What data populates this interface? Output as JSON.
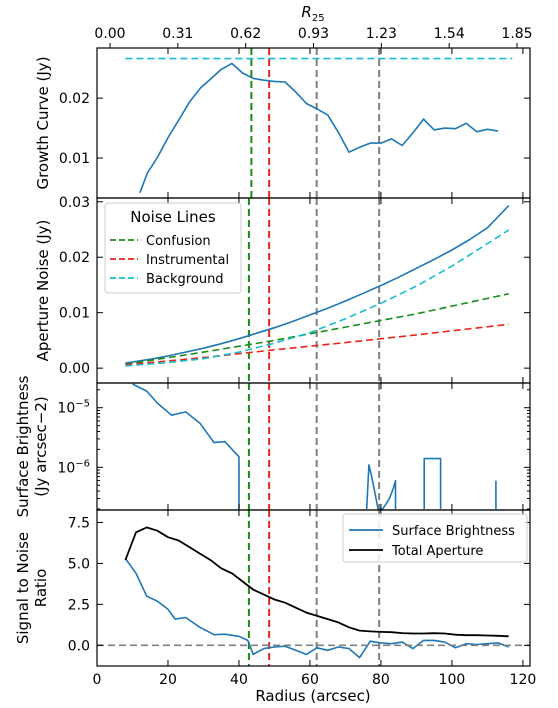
{
  "figure": {
    "top_axis_label": "R25",
    "x_axis_label": "Radius (arcsec)"
  },
  "colors": {
    "blue": "#1f77b4",
    "green": "#1a8c1a",
    "red": "#e8251c",
    "cyan": "#17becf",
    "gray": "#808080",
    "black": "#000000"
  },
  "chart_data": [
    {
      "type": "line",
      "ylabel": "Growth Curve (Jy)",
      "ylim": [
        0.0035,
        0.0282
      ],
      "yticks": [
        "0.01",
        "0.02"
      ],
      "yticks_values": [
        0.01,
        0.02
      ],
      "top_ticks": [
        "0.00",
        "0.31",
        "0.62",
        "0.93",
        "1.23",
        "1.54",
        "1.85"
      ],
      "top_ticks_radius": [
        8.2,
        23.2,
        38.2,
        53.2,
        68.2,
        83.2,
        98.2
      ],
      "series": [
        {
          "color": "blue",
          "x": [
            12.1,
            14.2,
            17.1,
            20.1,
            23.0,
            26.0,
            29.2,
            32.0,
            35.0,
            38.0,
            41.0,
            44.0,
            47.0,
            50.0,
            53.0,
            56.0,
            59.0,
            62.0,
            65.0,
            68.0,
            71.0,
            74.0,
            77.0,
            80.0,
            83.0,
            86.0,
            89.0,
            92.0,
            95.0,
            98.0,
            101.0,
            104.0,
            107.0,
            110.0,
            113.0
          ],
          "y": [
            0.0042,
            0.0075,
            0.0102,
            0.0135,
            0.0163,
            0.0193,
            0.0217,
            0.0232,
            0.0248,
            0.0258,
            0.0242,
            0.0233,
            0.023,
            0.0228,
            0.0227,
            0.021,
            0.0191,
            0.0182,
            0.0172,
            0.0143,
            0.011,
            0.0118,
            0.0125,
            0.0125,
            0.0132,
            0.0121,
            0.0142,
            0.0165,
            0.0147,
            0.015,
            0.0149,
            0.0158,
            0.0144,
            0.0148,
            0.0145
          ]
        },
        {
          "color": "cyan",
          "dashed": true,
          "x": [
            8.0,
            117.0
          ],
          "y": [
            0.0266,
            0.0266
          ]
        }
      ],
      "vlines": [
        {
          "x": 43.5,
          "color": "green"
        },
        {
          "x": 48.5,
          "color": "red"
        },
        {
          "x": 61.9,
          "color": "gray"
        },
        {
          "x": 79.5,
          "color": "gray"
        }
      ]
    },
    {
      "type": "line",
      "ylabel": "Aperture Noise (Jy)",
      "ylim": [
        -0.0025,
        0.0305
      ],
      "yticks": [
        "0.00",
        "0.01",
        "0.02",
        "0.03"
      ],
      "yticks_values": [
        0,
        0.01,
        0.02,
        0.03
      ],
      "legend_title": "Noise Lines",
      "legend": [
        "Confusion",
        "Instrumental",
        "Background"
      ],
      "series": [
        {
          "color": "blue",
          "x": [
            8,
            12,
            16,
            20,
            25,
            30,
            35,
            40,
            45,
            50,
            55,
            60,
            65,
            70,
            75,
            80,
            85,
            90,
            95,
            100,
            105,
            110,
            116
          ],
          "y": [
            0.0009,
            0.0013,
            0.0017,
            0.0022,
            0.0029,
            0.0036,
            0.0044,
            0.0053,
            0.0063,
            0.0073,
            0.0084,
            0.0096,
            0.0108,
            0.0121,
            0.0135,
            0.0149,
            0.0164,
            0.018,
            0.0196,
            0.0213,
            0.0232,
            0.0253,
            0.0293
          ]
        },
        {
          "name": "Confusion",
          "color": "green",
          "dashed": true,
          "x": [
            8,
            30,
            50,
            70,
            90,
            116
          ],
          "y": [
            0.0007,
            0.0029,
            0.005,
            0.0074,
            0.0098,
            0.0134
          ]
        },
        {
          "name": "Instrumental",
          "color": "red",
          "dashed": true,
          "x": [
            8,
            30,
            50,
            70,
            90,
            116
          ],
          "y": [
            0.0006,
            0.0019,
            0.0033,
            0.0046,
            0.006,
            0.0079
          ]
        },
        {
          "name": "Background",
          "color": "cyan",
          "dashed": true,
          "x": [
            8,
            20,
            30,
            40,
            50,
            60,
            70,
            80,
            90,
            100,
            116
          ],
          "y": [
            0.0004,
            0.001,
            0.0017,
            0.0029,
            0.0045,
            0.0064,
            0.0089,
            0.0117,
            0.0148,
            0.0184,
            0.0249
          ]
        }
      ],
      "vlines": [
        {
          "x": 42.8,
          "color": "green"
        },
        {
          "x": 48.5,
          "color": "red"
        },
        {
          "x": 61.9,
          "color": "gray"
        },
        {
          "x": 79.5,
          "color": "gray"
        }
      ]
    },
    {
      "type": "line",
      "ylabel": "Surface Brightness",
      "ylabel2": "(Jy arcsec−2)",
      "ylog": true,
      "ylim": [
        2e-07,
        2.5e-05
      ],
      "yticks": [
        "10−5",
        "10−6"
      ],
      "yticks_values": [
        1e-05,
        1e-06
      ],
      "series": [
        {
          "color": "blue",
          "x": [
            10,
            14,
            17,
            21,
            25,
            29,
            33,
            36,
            40,
            40
          ],
          "y": [
            2.5e-05,
            1.9e-05,
            1.2e-05,
            7.5e-06,
            8.5e-06,
            5.5e-06,
            2.6e-06,
            2.7e-06,
            1.5e-06,
            2e-07
          ]
        },
        {
          "color": "blue",
          "x": [
            76,
            76.6,
            77.4,
            79.2,
            80.5,
            82.4,
            83.5,
            84.1,
            84.1
          ],
          "y": [
            2e-07,
            1.1e-06,
            7e-07,
            2e-07,
            2e-07,
            3e-07,
            4.5e-07,
            6e-07,
            2e-07
          ]
        },
        {
          "color": "blue",
          "x": [
            92.2,
            92.2,
            96.8,
            96.8
          ],
          "y": [
            2e-07,
            1.4e-06,
            1.4e-06,
            2e-07
          ]
        },
        {
          "color": "blue",
          "x": [
            112.4,
            112.4
          ],
          "y": [
            2e-07,
            6e-07
          ]
        }
      ],
      "vlines": [
        {
          "x": 42.8,
          "color": "green"
        },
        {
          "x": 48.5,
          "color": "red"
        },
        {
          "x": 61.9,
          "color": "gray"
        },
        {
          "x": 79.5,
          "color": "gray"
        }
      ]
    },
    {
      "type": "line",
      "ylabel": "Signal to Noise",
      "ylabel2": "Ratio",
      "xlim": [
        0,
        122
      ],
      "xticks": [
        "0",
        "20",
        "40",
        "60",
        "80",
        "100",
        "120"
      ],
      "xticks_values": [
        0,
        20,
        40,
        60,
        80,
        100,
        120
      ],
      "ylim": [
        -1.2,
        8.2
      ],
      "yticks": [
        "0.0",
        "2.5",
        "5.0",
        "7.5"
      ],
      "yticks_values": [
        0,
        2.5,
        5.0,
        7.5
      ],
      "legend": [
        "Surface Brightness",
        "Total Aperture"
      ],
      "series": [
        {
          "name": "Surface Brightness",
          "color": "blue",
          "x": [
            8,
            11,
            14,
            17,
            20,
            22,
            25,
            29,
            33,
            36,
            40,
            42.5,
            44,
            47,
            50,
            53,
            56,
            59,
            62,
            65,
            68,
            71,
            74,
            77,
            80,
            83,
            86,
            89,
            92,
            95,
            98,
            101,
            104,
            107,
            110,
            113,
            116
          ],
          "y": [
            5.3,
            4.4,
            3.0,
            2.7,
            2.2,
            1.6,
            1.7,
            1.1,
            0.65,
            0.68,
            0.55,
            0.3,
            -0.55,
            -0.2,
            -0.1,
            -0.05,
            -0.3,
            -0.55,
            -0.15,
            -0.3,
            -0.1,
            -0.2,
            -0.75,
            0.25,
            0.15,
            0.1,
            0.2,
            -0.2,
            0.3,
            0.3,
            0.2,
            -0.15,
            0.1,
            0.05,
            0.1,
            0.15,
            -0.1
          ]
        },
        {
          "name": "Total Aperture",
          "color": "black",
          "x": [
            8,
            11,
            14,
            17,
            20,
            23,
            26,
            29,
            32,
            35,
            38,
            41,
            44,
            47,
            50,
            53,
            56,
            59,
            62,
            65,
            68,
            71,
            74,
            77,
            80,
            83,
            86,
            89,
            92,
            95,
            98,
            101,
            104,
            107,
            110,
            113,
            116
          ],
          "y": [
            5.2,
            6.9,
            7.2,
            7.0,
            6.6,
            6.4,
            6.0,
            5.6,
            5.2,
            4.7,
            4.4,
            3.9,
            3.4,
            3.1,
            2.8,
            2.6,
            2.3,
            2.0,
            1.8,
            1.6,
            1.4,
            1.1,
            0.9,
            0.85,
            0.82,
            0.8,
            0.75,
            0.72,
            0.72,
            0.74,
            0.72,
            0.65,
            0.62,
            0.62,
            0.6,
            0.58,
            0.55
          ]
        },
        {
          "color": "gray",
          "dashed": true,
          "x": [
            0,
            122
          ],
          "y": [
            0,
            0
          ]
        }
      ],
      "vlines": [
        {
          "x": 42.8,
          "color": "green"
        },
        {
          "x": 48.5,
          "color": "red"
        },
        {
          "x": 61.9,
          "color": "gray"
        },
        {
          "x": 79.5,
          "color": "gray"
        }
      ]
    }
  ]
}
